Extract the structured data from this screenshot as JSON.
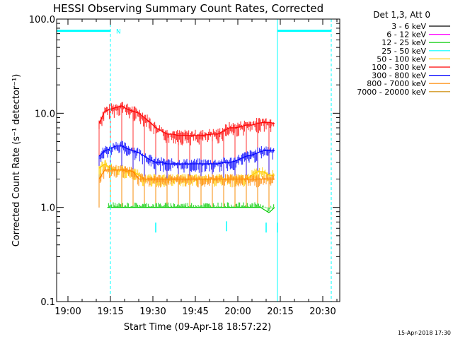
{
  "chart_data": {
    "type": "line",
    "title": "HESSI Observing Summary Count Rates, Corrected",
    "ylabel": "Corrected Count Rate (s⁻¹ detector⁻¹)",
    "xlabel": "Start Time (09-Apr-18 18:57:22)",
    "yscale": "log",
    "ylim": [
      0.1,
      100.0
    ],
    "ytick_labels": [
      "0.1",
      "1.0",
      "10.0",
      "100.0"
    ],
    "ytick_values": [
      0.1,
      1.0,
      10.0,
      100.0
    ],
    "xlim": [
      "18:56",
      "20:36"
    ],
    "xtick_labels": [
      "19:00",
      "19:15",
      "19:30",
      "19:45",
      "20:00",
      "20:15",
      "20:30"
    ],
    "xtick_values": [
      "19:00",
      "19:15",
      "19:30",
      "19:45",
      "20:00",
      "20:15",
      "20:30"
    ],
    "legend": {
      "header": "Det 1,3, Att 0",
      "placement": "outside-right",
      "entries": [
        {
          "label": "3 - 6 keV",
          "color": "#000000"
        },
        {
          "label": "6 - 12 keV",
          "color": "#ff00ff"
        },
        {
          "label": "12 - 25 keV",
          "color": "#00cc00"
        },
        {
          "label": "25 - 50 keV",
          "color": "#00ffff"
        },
        {
          "label": "50 - 100 keV",
          "color": "#ffcc00"
        },
        {
          "label": "100 - 300 keV",
          "color": "#ff0000"
        },
        {
          "label": "300 - 800 keV",
          "color": "#0000ff"
        },
        {
          "label": "800 - 7000 keV",
          "color": "#ff8800"
        },
        {
          "label": "7000 - 20000 keV",
          "color": "#cc8800"
        }
      ]
    },
    "night_bars": [
      {
        "start": "18:56",
        "end": "19:15",
        "level": 75.0
      },
      {
        "start": "20:14",
        "end": "20:33",
        "level": 75.0
      }
    ],
    "flag_labels": [
      {
        "text": "N",
        "time": "19:17"
      }
    ],
    "event_lines": [
      {
        "time": "18:56",
        "style": "solid",
        "color": "#00ffff"
      },
      {
        "time": "19:15",
        "style": "dashed",
        "color": "#00ffff"
      },
      {
        "time": "20:14",
        "style": "solid",
        "color": "#00ffff"
      },
      {
        "time": "20:33",
        "style": "dashed",
        "color": "#00ffff"
      }
    ],
    "series": [
      {
        "name": "100 - 300 keV",
        "color": "#ff0000",
        "points": [
          [
            "19:11",
            7.8
          ],
          [
            "19:13",
            10.5
          ],
          [
            "19:15",
            11.0
          ],
          [
            "19:17",
            11.5
          ],
          [
            "19:19",
            12.0
          ],
          [
            "19:21",
            11.0
          ],
          [
            "19:23",
            10.5
          ],
          [
            "19:25",
            10.0
          ],
          [
            "19:27",
            9.0
          ],
          [
            "19:29",
            8.0
          ],
          [
            "19:31",
            7.0
          ],
          [
            "19:33",
            6.5
          ],
          [
            "19:35",
            6.0
          ],
          [
            "19:37",
            6.0
          ],
          [
            "19:39",
            5.8
          ],
          [
            "19:41",
            5.8
          ],
          [
            "19:43",
            5.8
          ],
          [
            "19:45",
            5.8
          ],
          [
            "19:47",
            5.8
          ],
          [
            "19:49",
            5.9
          ],
          [
            "19:51",
            6.0
          ],
          [
            "19:53",
            6.0
          ],
          [
            "19:55",
            6.5
          ],
          [
            "19:57",
            7.0
          ],
          [
            "19:59",
            7.0
          ],
          [
            "20:01",
            7.2
          ],
          [
            "20:03",
            7.5
          ],
          [
            "20:05",
            7.5
          ],
          [
            "20:07",
            7.8
          ],
          [
            "20:09",
            8.0
          ],
          [
            "20:11",
            8.0
          ],
          [
            "20:13",
            7.8
          ]
        ]
      },
      {
        "name": "300 - 800 keV",
        "color": "#0000ff",
        "points": [
          [
            "19:11",
            3.5
          ],
          [
            "19:13",
            4.0
          ],
          [
            "19:15",
            4.2
          ],
          [
            "19:17",
            4.5
          ],
          [
            "19:19",
            4.5
          ],
          [
            "19:21",
            4.2
          ],
          [
            "19:23",
            4.0
          ],
          [
            "19:25",
            3.8
          ],
          [
            "19:27",
            3.5
          ],
          [
            "19:29",
            3.2
          ],
          [
            "19:31",
            3.0
          ],
          [
            "19:33",
            3.0
          ],
          [
            "19:35",
            2.9
          ],
          [
            "19:37",
            2.9
          ],
          [
            "19:39",
            2.9
          ],
          [
            "19:41",
            2.9
          ],
          [
            "19:43",
            2.9
          ],
          [
            "19:45",
            2.9
          ],
          [
            "19:47",
            2.9
          ],
          [
            "19:49",
            2.9
          ],
          [
            "19:51",
            2.9
          ],
          [
            "19:53",
            2.9
          ],
          [
            "19:55",
            3.0
          ],
          [
            "19:57",
            3.0
          ],
          [
            "19:59",
            3.1
          ],
          [
            "20:01",
            3.3
          ],
          [
            "20:03",
            3.5
          ],
          [
            "20:05",
            3.6
          ],
          [
            "20:07",
            3.8
          ],
          [
            "20:09",
            4.0
          ],
          [
            "20:11",
            4.0
          ],
          [
            "20:13",
            4.0
          ]
        ]
      },
      {
        "name": "50 - 100 keV",
        "color": "#ffcc00",
        "points": [
          [
            "19:11",
            2.6
          ],
          [
            "19:13",
            2.9
          ],
          [
            "19:15",
            2.6
          ],
          [
            "19:17",
            2.5
          ],
          [
            "19:19",
            2.5
          ],
          [
            "19:21",
            2.4
          ],
          [
            "19:23",
            2.4
          ],
          [
            "19:25",
            2.2
          ],
          [
            "19:27",
            2.0
          ],
          [
            "19:29",
            2.0
          ],
          [
            "19:31",
            2.0
          ],
          [
            "19:33",
            2.0
          ],
          [
            "19:35",
            2.0
          ],
          [
            "19:37",
            2.0
          ],
          [
            "19:39",
            2.0
          ],
          [
            "19:41",
            2.0
          ],
          [
            "19:43",
            2.0
          ],
          [
            "19:45",
            2.0
          ],
          [
            "19:47",
            2.0
          ],
          [
            "19:49",
            2.0
          ],
          [
            "19:51",
            2.0
          ],
          [
            "19:53",
            2.0
          ],
          [
            "19:55",
            2.0
          ],
          [
            "19:57",
            2.0
          ],
          [
            "19:59",
            2.0
          ],
          [
            "20:01",
            2.0
          ],
          [
            "20:03",
            2.0
          ],
          [
            "20:05",
            2.2
          ],
          [
            "20:07",
            2.4
          ],
          [
            "20:09",
            2.4
          ],
          [
            "20:11",
            2.2
          ],
          [
            "20:13",
            2.2
          ]
        ]
      },
      {
        "name": "800 - 7000 keV",
        "color": "#ff8800",
        "points": [
          [
            "19:11",
            2.0
          ],
          [
            "19:13",
            2.5
          ],
          [
            "19:15",
            2.5
          ],
          [
            "19:17",
            2.5
          ],
          [
            "19:19",
            2.5
          ],
          [
            "19:21",
            2.5
          ],
          [
            "19:23",
            2.4
          ],
          [
            "19:25",
            2.0
          ],
          [
            "19:27",
            2.0
          ],
          [
            "19:29",
            2.0
          ],
          [
            "19:31",
            2.0
          ],
          [
            "19:33",
            2.0
          ],
          [
            "19:35",
            2.0
          ],
          [
            "19:37",
            2.0
          ],
          [
            "19:39",
            2.0
          ],
          [
            "19:41",
            2.0
          ],
          [
            "19:43",
            2.0
          ],
          [
            "19:45",
            2.0
          ],
          [
            "19:47",
            2.0
          ],
          [
            "19:49",
            2.0
          ],
          [
            "19:51",
            2.0
          ],
          [
            "19:53",
            2.0
          ],
          [
            "19:55",
            2.0
          ],
          [
            "19:57",
            2.0
          ],
          [
            "19:59",
            2.0
          ],
          [
            "20:01",
            2.0
          ],
          [
            "20:03",
            2.0
          ],
          [
            "20:05",
            2.0
          ],
          [
            "20:07",
            2.0
          ],
          [
            "20:09",
            2.0
          ],
          [
            "20:11",
            2.0
          ],
          [
            "20:13",
            2.0
          ]
        ]
      },
      {
        "name": "12 - 25 keV",
        "color": "#00cc00",
        "points": [
          [
            "19:14",
            1.0
          ],
          [
            "19:17",
            1.0
          ],
          [
            "19:20",
            1.0
          ],
          [
            "19:23",
            1.0
          ],
          [
            "19:26",
            1.0
          ],
          [
            "19:29",
            1.0
          ],
          [
            "19:32",
            1.0
          ],
          [
            "19:35",
            1.0
          ],
          [
            "19:38",
            1.0
          ],
          [
            "19:41",
            1.0
          ],
          [
            "19:44",
            1.0
          ],
          [
            "19:47",
            1.0
          ],
          [
            "19:50",
            1.0
          ],
          [
            "19:53",
            1.0
          ],
          [
            "19:56",
            1.0
          ],
          [
            "19:59",
            1.0
          ],
          [
            "20:02",
            1.0
          ],
          [
            "20:05",
            1.0
          ],
          [
            "20:08",
            1.0
          ],
          [
            "20:11",
            0.88
          ],
          [
            "20:13",
            1.0
          ]
        ]
      },
      {
        "name": "25 - 50 keV",
        "color": "#00ffff",
        "points": [
          [
            "19:31",
            0.6
          ],
          [
            "19:56",
            0.62
          ],
          [
            "20:10",
            0.6
          ],
          [
            "20:14",
            0.6
          ]
        ]
      }
    ],
    "footer_date": "15-Apr-2018 17:30"
  }
}
